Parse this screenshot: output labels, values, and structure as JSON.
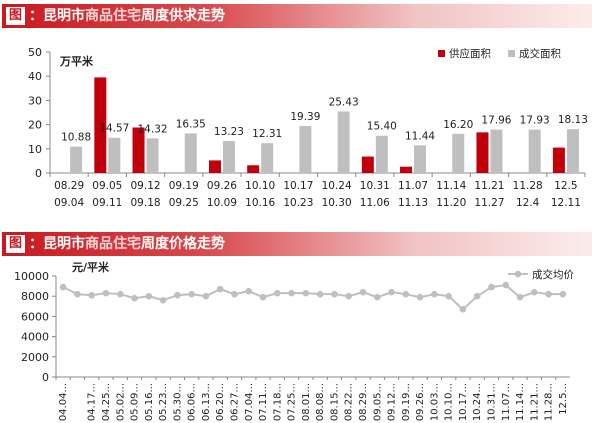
{
  "panels": {
    "top": {
      "tag": "图",
      "prefix": "：昆明市",
      "highlight": "商品住宅",
      "suffix": "周度供求走势"
    },
    "bottom": {
      "tag": "图",
      "prefix": "：昆明市",
      "highlight": "商品住宅",
      "suffix": "周度价格走势"
    }
  },
  "chart_data": [
    {
      "type": "bar",
      "title": "昆明市商品住宅周度供求走势",
      "ylabel": "万平米",
      "ylim": [
        0,
        50
      ],
      "yticks": [
        0,
        10,
        20,
        30,
        40,
        50
      ],
      "legend_position": "top-right",
      "categories_line1": [
        "08.29",
        "09.05",
        "09.12",
        "09.19",
        "09.26",
        "10.10",
        "10.17",
        "10.24",
        "10.31",
        "11.07",
        "11.14",
        "11.21",
        "11.28",
        "12.5"
      ],
      "categories_line2": [
        "09.04",
        "09.11",
        "09.18",
        "09.25",
        "10.09",
        "10.16",
        "10.23",
        "10.30",
        "11.06",
        "11.13",
        "11.20",
        "11.27",
        "12.4",
        "12.11"
      ],
      "series": [
        {
          "name": "供应面积",
          "color": "#c0000a",
          "values": [
            0,
            39.5,
            18.8,
            0,
            5.2,
            3.2,
            0,
            0,
            6.8,
            2.6,
            0,
            16.8,
            0,
            10.5
          ]
        },
        {
          "name": "成交面积",
          "color": "#bfbfbf",
          "values": [
            10.88,
            14.57,
            14.32,
            16.35,
            13.23,
            12.31,
            19.39,
            25.43,
            15.4,
            11.44,
            16.2,
            17.96,
            17.93,
            18.13
          ],
          "labels": [
            "10.88",
            "14.57",
            "14.32",
            "16.35",
            "13.23",
            "12.31",
            "19.39",
            "25.43",
            "15.40",
            "11.44",
            "16.20",
            "17.96",
            "17.93",
            "18.13"
          ]
        }
      ]
    },
    {
      "type": "line",
      "title": "昆明市商品住宅周度价格走势",
      "ylabel": "元/平米",
      "ylim": [
        0,
        10000
      ],
      "yticks": [
        0,
        2000,
        4000,
        6000,
        8000,
        10000
      ],
      "yticklabels": [
        "0",
        "2000",
        "4000",
        "6000",
        "8000",
        "10000"
      ],
      "legend_position": "top-right",
      "x": [
        "04.04...",
        "",
        "04.17...",
        "04.25...",
        "05.02...",
        "05.09...",
        "05.16...",
        "05.23...",
        "05.30...",
        "06.06...",
        "06.13...",
        "06.20...",
        "06.27...",
        "07.04...",
        "07.11...",
        "07.18...",
        "07.25...",
        "08.01...",
        "08.08...",
        "08.15...",
        "08.22...",
        "08.29...",
        "09.05...",
        "09.12...",
        "09.19...",
        "09.26...",
        "10.03...",
        "10.10...",
        "10.17...",
        "10.24...",
        "10.31...",
        "11.07...",
        "11.14...",
        "11.21...",
        "11.28...",
        "12.5..."
      ],
      "series": [
        {
          "name": "成交均价",
          "color": "#bfbfbf",
          "values": [
            8900,
            8200,
            8100,
            8300,
            8200,
            7800,
            8000,
            7600,
            8100,
            8200,
            8000,
            8700,
            8200,
            8500,
            7900,
            8300,
            8300,
            8300,
            8200,
            8200,
            8000,
            8400,
            7900,
            8400,
            8200,
            7900,
            8200,
            8000,
            6700,
            8000,
            8900,
            9100,
            7900,
            8400,
            8200,
            8200
          ]
        }
      ]
    }
  ]
}
